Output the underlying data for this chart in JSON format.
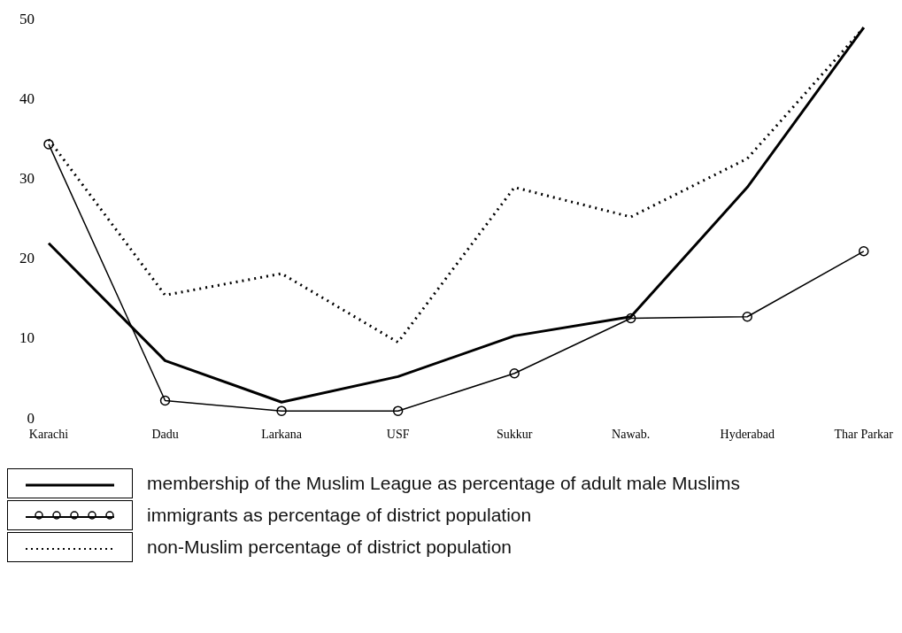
{
  "chart_data": {
    "type": "line",
    "categories": [
      "Karachi",
      "Dadu",
      "Larkana",
      "USF",
      "Sukkur",
      "Nawab.",
      "Hyderabad",
      "Thar Parkar"
    ],
    "series": [
      {
        "name": "membership of the Muslim League as percentage of adult male Muslims",
        "color": "#000000",
        "values": [
          22,
          7.3,
          2.1,
          5.3,
          10.4,
          12.8,
          29,
          49
        ],
        "marker": "none",
        "line_style": "solid"
      },
      {
        "name": "immigrants as percentage of district population",
        "color": "#000000",
        "values": [
          34.4,
          2.3,
          1,
          1,
          5.7,
          12.6,
          12.8,
          21
        ],
        "marker": "circle",
        "line_style": "solid"
      },
      {
        "name": "non-Muslim percentage of district population",
        "color": "#000000",
        "values": [
          35,
          15.5,
          18.2,
          9.6,
          29,
          25.3,
          32.6,
          49
        ],
        "marker": "none",
        "line_style": "dotted"
      }
    ],
    "ylim": [
      0,
      50
    ],
    "yticks": [
      0,
      10,
      20,
      30,
      40,
      50
    ],
    "grid": false,
    "legend": "bottom"
  }
}
